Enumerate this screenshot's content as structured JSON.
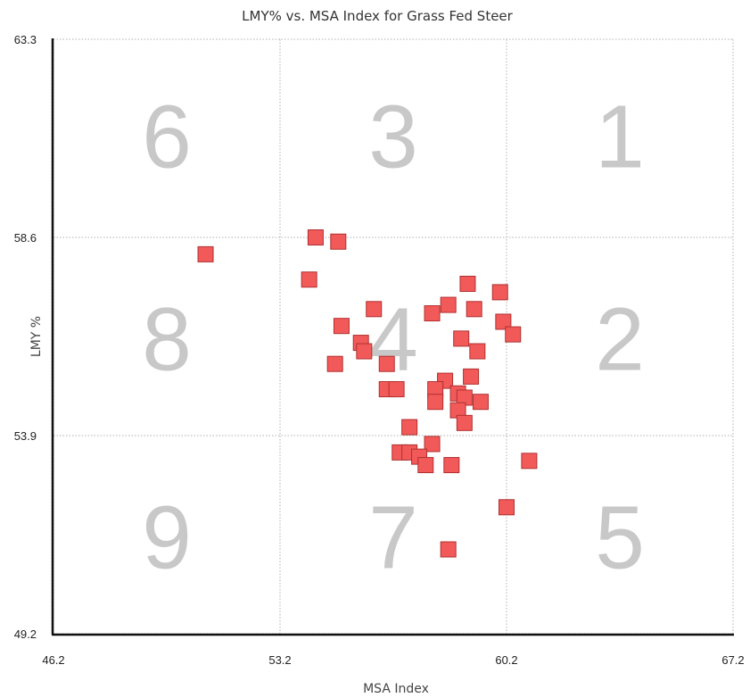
{
  "chart_data": {
    "type": "scatter",
    "title": "LMY% vs. MSA Index for Grass Fed Steer",
    "xlabel": "MSA Index",
    "ylabel": "LMY %",
    "xlim": [
      46.2,
      67.2
    ],
    "ylim": [
      49.2,
      63.3
    ],
    "xticks": [
      "46.2",
      "53.2",
      "60.2",
      "67.2"
    ],
    "yticks": [
      "49.2",
      "53.9",
      "58.6",
      "63.3"
    ],
    "grid": true,
    "zones": [
      {
        "label": "6",
        "x": 49.7,
        "y": 61.0
      },
      {
        "label": "3",
        "x": 56.7,
        "y": 61.0
      },
      {
        "label": "1",
        "x": 63.7,
        "y": 61.0
      },
      {
        "label": "8",
        "x": 49.7,
        "y": 56.2
      },
      {
        "label": "4",
        "x": 56.7,
        "y": 56.2
      },
      {
        "label": "2",
        "x": 63.7,
        "y": 56.2
      },
      {
        "label": "9",
        "x": 49.7,
        "y": 51.5
      },
      {
        "label": "7",
        "x": 56.7,
        "y": 51.5
      },
      {
        "label": "5",
        "x": 63.7,
        "y": 51.5
      }
    ],
    "series": [
      {
        "color": "#f25a5a",
        "marker": "square",
        "points": [
          [
            50.9,
            58.2
          ],
          [
            54.3,
            58.6
          ],
          [
            55.0,
            58.5
          ],
          [
            54.1,
            57.6
          ],
          [
            55.1,
            56.5
          ],
          [
            56.1,
            56.9
          ],
          [
            55.7,
            56.1
          ],
          [
            55.8,
            55.9
          ],
          [
            54.9,
            55.6
          ],
          [
            56.5,
            55.6
          ],
          [
            56.5,
            55.0
          ],
          [
            56.8,
            55.0
          ],
          [
            57.9,
            56.8
          ],
          [
            58.4,
            57.0
          ],
          [
            59.0,
            57.5
          ],
          [
            60.0,
            57.3
          ],
          [
            59.2,
            56.9
          ],
          [
            60.1,
            56.6
          ],
          [
            60.4,
            56.3
          ],
          [
            58.8,
            56.2
          ],
          [
            59.3,
            55.9
          ],
          [
            59.1,
            55.3
          ],
          [
            58.3,
            55.2
          ],
          [
            58.0,
            55.0
          ],
          [
            58.0,
            54.7
          ],
          [
            58.7,
            54.9
          ],
          [
            58.9,
            54.8
          ],
          [
            58.7,
            54.5
          ],
          [
            59.4,
            54.7
          ],
          [
            58.9,
            54.2
          ],
          [
            57.2,
            54.1
          ],
          [
            57.9,
            53.7
          ],
          [
            56.9,
            53.5
          ],
          [
            57.2,
            53.5
          ],
          [
            57.5,
            53.4
          ],
          [
            57.7,
            53.2
          ],
          [
            58.5,
            53.2
          ],
          [
            60.9,
            53.3
          ],
          [
            60.2,
            52.2
          ],
          [
            58.4,
            51.2
          ]
        ]
      }
    ]
  }
}
